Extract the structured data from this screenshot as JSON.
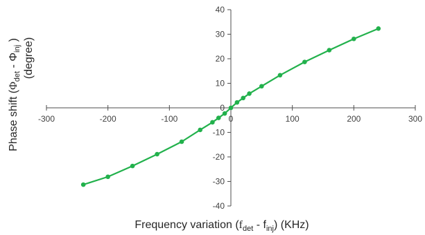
{
  "chart_data": {
    "type": "line",
    "title": "",
    "xlabel": {
      "prefix": "Frequency variation (",
      "f1": "f",
      "sub1": "det",
      "mid": " - f",
      "sub2": "inj",
      "suffix": ") (KHz)"
    },
    "ylabel": {
      "line1_prefix": "Phase shift (",
      "phi1": "Φ",
      "sub1": "det",
      "mid": " - Φ",
      "sub2": "inj",
      "line1_suffix": " )",
      "line2": "(degree)"
    },
    "xlim": [
      -300,
      300
    ],
    "ylim": [
      -40,
      40
    ],
    "x_ticks": [
      -300,
      -200,
      -100,
      0,
      100,
      200,
      300
    ],
    "y_ticks": [
      -40,
      -30,
      -20,
      -10,
      0,
      10,
      20,
      30,
      40
    ],
    "x_tick_labels": [
      "-300",
      "-200",
      "-100",
      "0",
      "100",
      "200",
      "300"
    ],
    "y_tick_labels": [
      "-40",
      "-30",
      "-20",
      "-10",
      "0",
      "10",
      "20",
      "30",
      "40"
    ],
    "grid": false,
    "legend": "none",
    "series": [
      {
        "color": "#22b14c",
        "marker": "circle",
        "x": [
          -240,
          -200,
          -160,
          -120,
          -80,
          -50,
          -30,
          -20,
          -10,
          0,
          10,
          20,
          30,
          50,
          80,
          120,
          160,
          200,
          240
        ],
        "y": [
          -31.3,
          -28.1,
          -23.7,
          -18.9,
          -13.8,
          -9.0,
          -5.9,
          -4.1,
          -2.3,
          0.0,
          2.2,
          4.0,
          5.8,
          8.8,
          13.3,
          18.7,
          23.5,
          28.1,
          32.3
        ]
      }
    ]
  }
}
